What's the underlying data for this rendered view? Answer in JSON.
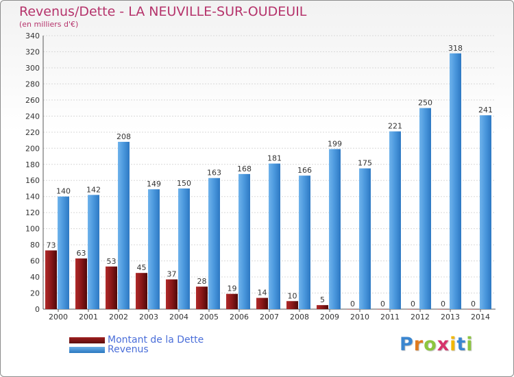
{
  "title": "Revenus/Dette - LA NEUVILLE-SUR-OUDEUIL",
  "subtitle": "(en milliers d'€)",
  "brand": "Proxiti",
  "colors": {
    "dette": "#7a1414",
    "revenus": "#3d8ed6",
    "title": "#b5336b"
  },
  "chart_data": {
    "type": "bar",
    "categories": [
      "2000",
      "2001",
      "2002",
      "2003",
      "2004",
      "2005",
      "2006",
      "2007",
      "2008",
      "2009",
      "2010",
      "2011",
      "2012",
      "2013",
      "2014"
    ],
    "series": [
      {
        "name": "Montant de la Dette",
        "values": [
          73,
          63,
          53,
          45,
          37,
          28,
          19,
          14,
          10,
          5,
          0,
          0,
          0,
          0,
          0
        ]
      },
      {
        "name": "Revenus",
        "values": [
          140,
          142,
          208,
          149,
          150,
          163,
          168,
          181,
          166,
          199,
          175,
          221,
          250,
          318,
          241
        ]
      }
    ],
    "ylim": [
      0,
      340
    ],
    "yticks": [
      0,
      20,
      40,
      60,
      80,
      100,
      120,
      140,
      160,
      180,
      200,
      220,
      240,
      260,
      280,
      300,
      320,
      340
    ],
    "grid": true,
    "legend": "bottom-left"
  }
}
